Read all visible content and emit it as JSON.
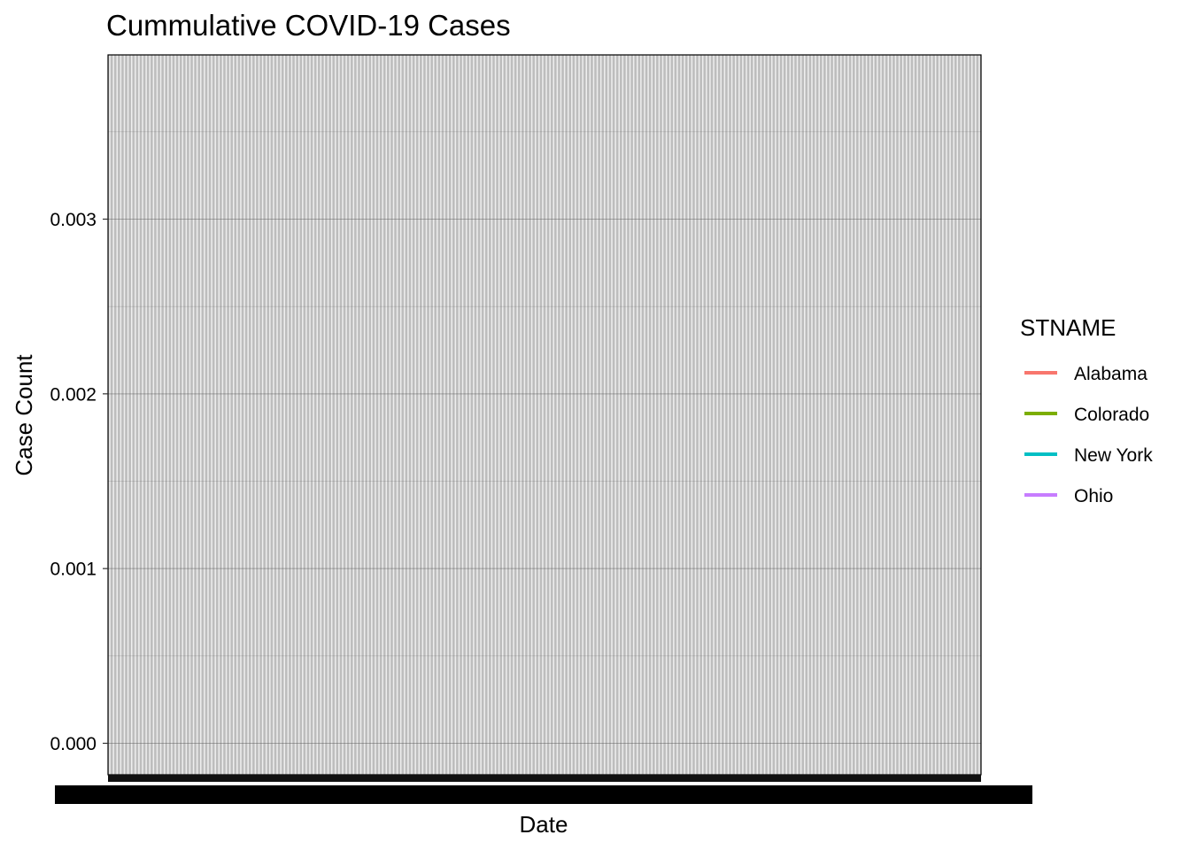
{
  "chart_data": {
    "type": "line",
    "title": "Cummulative COVID-19 Cases",
    "xlabel": "Date",
    "ylabel": "Case Count",
    "y_ticks": [
      "0.000",
      "0.001",
      "0.002",
      "0.003"
    ],
    "ylim": [
      -0.00018,
      0.00394
    ],
    "x_category_count": 240,
    "grid": true,
    "legend": {
      "title": "STNAME",
      "position": "right"
    },
    "series": [
      {
        "name": "Alabama",
        "color": "#F8766D",
        "values": []
      },
      {
        "name": "Colorado",
        "color": "#7CAE00",
        "values": []
      },
      {
        "name": "New York",
        "color": "#00BFC4",
        "values": []
      },
      {
        "name": "Ohio",
        "color": "#C77CFF",
        "values": []
      }
    ]
  }
}
